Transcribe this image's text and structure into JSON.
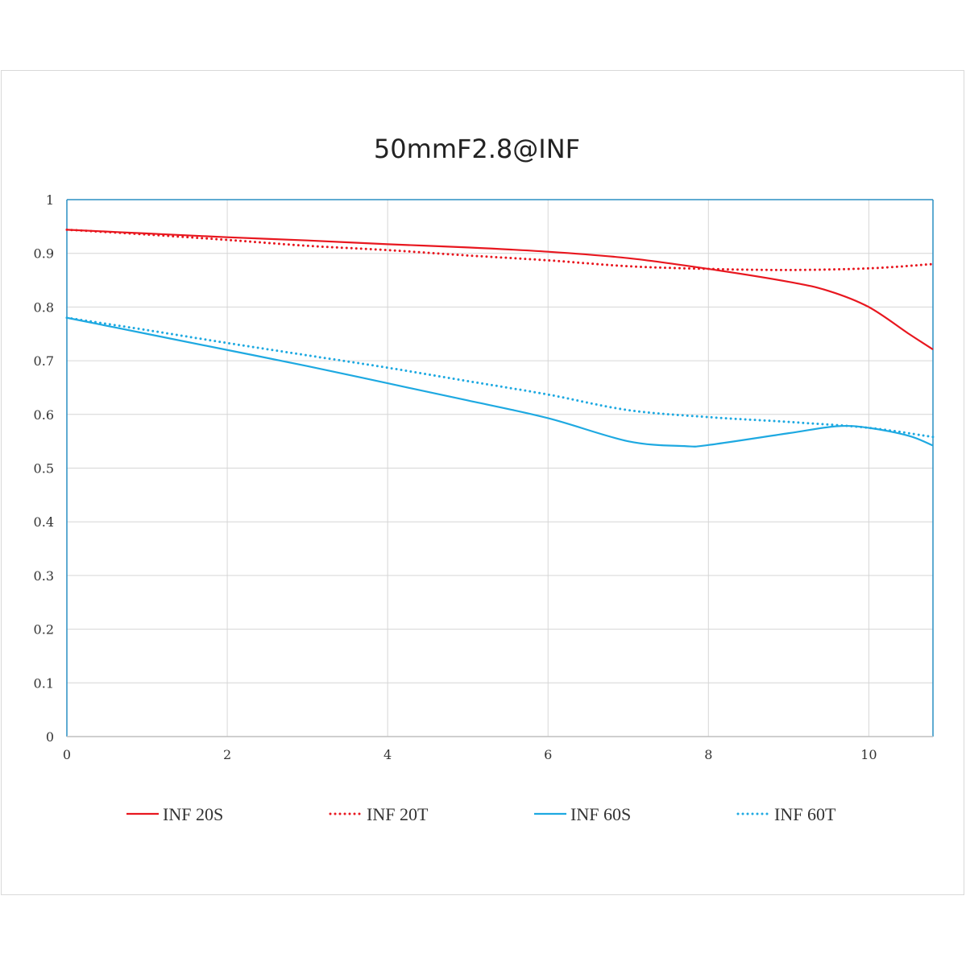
{
  "chart_data": {
    "type": "line",
    "title": "50mmF2.8@INF",
    "xlabel": "",
    "ylabel": "",
    "xlim": [
      0,
      10.8
    ],
    "ylim": [
      0,
      1
    ],
    "x_ticks": [
      0,
      2,
      4,
      6,
      8,
      10
    ],
    "x_tick_labels": [
      "0",
      "2",
      "4",
      "6",
      "8",
      "10"
    ],
    "y_ticks": [
      0,
      0.1,
      0.2,
      0.3,
      0.4,
      0.5,
      0.6,
      0.7,
      0.8,
      0.9,
      1
    ],
    "y_tick_labels": [
      "0",
      "0.1",
      "0.2",
      "0.3",
      "0.4",
      "0.5",
      "0.6",
      "0.7",
      "0.8",
      "0.9",
      "1"
    ],
    "grid": true,
    "legend_position": "bottom",
    "series": [
      {
        "name": "INF 20S",
        "color": "#e8171f",
        "style": "solid",
        "points": [
          [
            0,
            0.944
          ],
          [
            1,
            0.937
          ],
          [
            2,
            0.93
          ],
          [
            3,
            0.924
          ],
          [
            4,
            0.917
          ],
          [
            5,
            0.911
          ],
          [
            6,
            0.903
          ],
          [
            7,
            0.891
          ],
          [
            8,
            0.871
          ],
          [
            9,
            0.847
          ],
          [
            9.5,
            0.83
          ],
          [
            10,
            0.8
          ],
          [
            10.5,
            0.75
          ],
          [
            10.8,
            0.721
          ]
        ]
      },
      {
        "name": "INF 20T",
        "color": "#e8171f",
        "style": "dotted",
        "points": [
          [
            0,
            0.944
          ],
          [
            1,
            0.935
          ],
          [
            2,
            0.925
          ],
          [
            3,
            0.914
          ],
          [
            4,
            0.906
          ],
          [
            5,
            0.896
          ],
          [
            6,
            0.887
          ],
          [
            7,
            0.876
          ],
          [
            8,
            0.871
          ],
          [
            9,
            0.869
          ],
          [
            10,
            0.872
          ],
          [
            10.8,
            0.88
          ]
        ]
      },
      {
        "name": "INF 60S",
        "color": "#1ea9e1",
        "style": "solid",
        "points": [
          [
            0,
            0.78
          ],
          [
            1,
            0.75
          ],
          [
            2,
            0.72
          ],
          [
            3,
            0.69
          ],
          [
            4,
            0.658
          ],
          [
            5,
            0.626
          ],
          [
            6,
            0.593
          ],
          [
            7,
            0.55
          ],
          [
            7.7,
            0.541
          ],
          [
            8,
            0.543
          ],
          [
            9,
            0.565
          ],
          [
            9.6,
            0.578
          ],
          [
            10,
            0.575
          ],
          [
            10.5,
            0.56
          ],
          [
            10.8,
            0.542
          ]
        ]
      },
      {
        "name": "INF 60T",
        "color": "#1ea9e1",
        "style": "dotted",
        "points": [
          [
            0,
            0.78
          ],
          [
            1,
            0.757
          ],
          [
            2,
            0.733
          ],
          [
            3,
            0.71
          ],
          [
            4,
            0.687
          ],
          [
            5,
            0.662
          ],
          [
            6,
            0.637
          ],
          [
            7,
            0.608
          ],
          [
            8,
            0.595
          ],
          [
            9,
            0.586
          ],
          [
            10,
            0.575
          ],
          [
            10.8,
            0.558
          ]
        ]
      }
    ]
  },
  "colors": {
    "plot_border": "#2a8fc4",
    "grid": "#d6d6d6",
    "frame": "#d9d9d9"
  }
}
